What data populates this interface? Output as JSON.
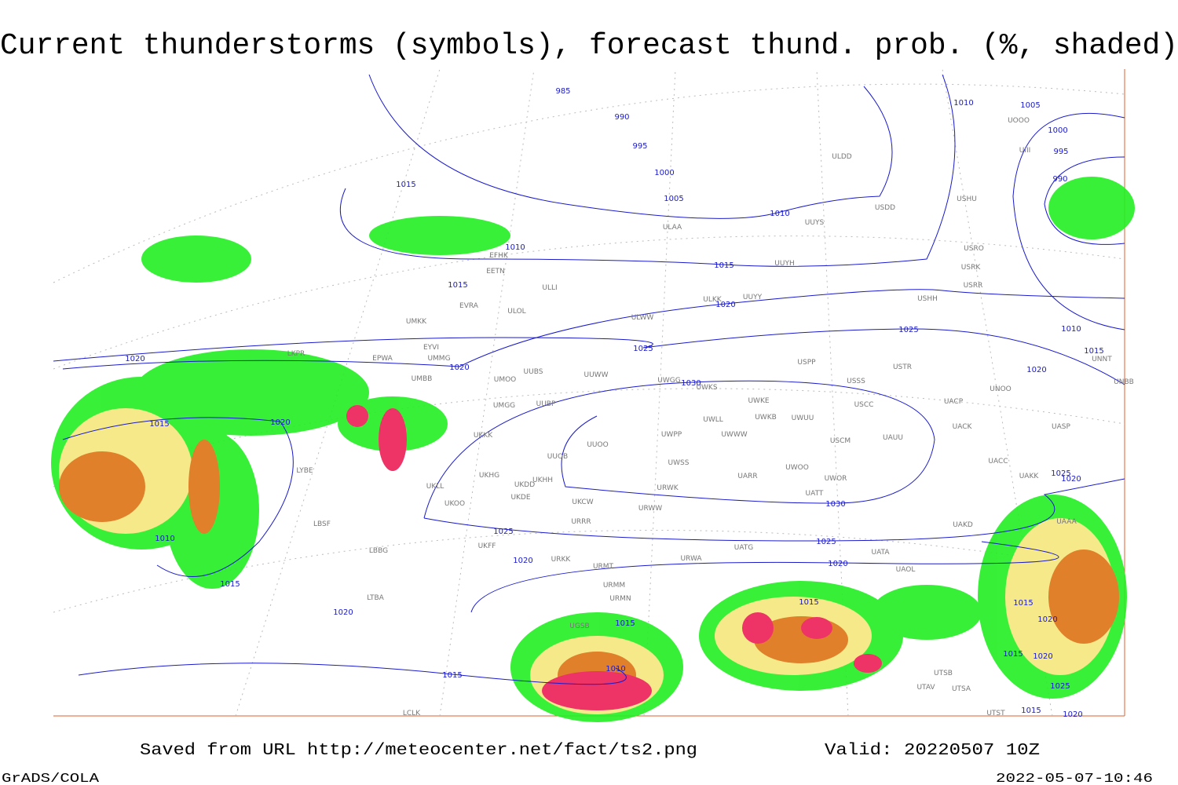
{
  "title": "Current thunderstorms (symbols), forecast thund. prob. (%, shaded)",
  "isobar_labels": [
    985,
    990,
    995,
    1000,
    1005,
    1010,
    1015,
    1020,
    1025,
    1030,
    1030,
    1025,
    1020,
    1025,
    1020,
    1020,
    1020,
    1015,
    1010,
    1015,
    1020,
    1015,
    1010,
    1015,
    1015,
    1010,
    1005,
    1000,
    995,
    990,
    1010,
    1015,
    1020,
    1025,
    1015,
    1010,
    1015,
    1020,
    1025,
    1020,
    1015,
    1020,
    1015,
    1020,
    1025,
    1015,
    1020
  ],
  "stations": [
    "ULDD",
    "USDD",
    "USHU",
    "UUYS",
    "ULAA",
    "UUYH",
    "EFHK",
    "EETN",
    "ULLI",
    "EVRA",
    "ULKK",
    "UUYY",
    "ULOL",
    "ULWW",
    "UMKK",
    "EYVI",
    "UMMG",
    "EPWA",
    "LKPR",
    "UUBS",
    "UMBB",
    "UMOO",
    "UUWW",
    "UWGG",
    "UWKS",
    "UWKE",
    "UWKB",
    "UWUU",
    "USSS",
    "USPP",
    "USTR",
    "USCC",
    "UNOO",
    "UACP",
    "UACK",
    "UASP",
    "UNBB",
    "UNNT",
    "UMGG",
    "UUBP",
    "UKKK",
    "UUOO",
    "UWPP",
    "UWWW",
    "UWLL",
    "USCM",
    "UAUU",
    "UUOB",
    "UWSS",
    "UARR",
    "UWOO",
    "UWOR",
    "UACC",
    "UAKK",
    "UKHH",
    "UKHG",
    "UKDD",
    "UKDE",
    "UKLL",
    "UKOO",
    "UKCW",
    "URWK",
    "URWW",
    "UATT",
    "URRR",
    "UAKD",
    "LBSF",
    "LYBE",
    "UKFF",
    "URKK",
    "UATG",
    "UATA",
    "URWA",
    "URMT",
    "URMM",
    "URMN",
    "UAOL",
    "LBBG",
    "LTBA",
    "UGSB",
    "UTSB",
    "UTAV",
    "UTSA",
    "UTST",
    "LCLK",
    "UAAA",
    "UIII",
    "UOOO",
    "USRR",
    "USRK",
    "USRO",
    "USHH"
  ],
  "footer": {
    "source": "Saved from URL http://meteocenter.net/fact/ts2.png",
    "valid": "Valid: 20220507 10Z",
    "software": "GrADS/COLA",
    "timestamp": "2022-05-07-10:46"
  }
}
